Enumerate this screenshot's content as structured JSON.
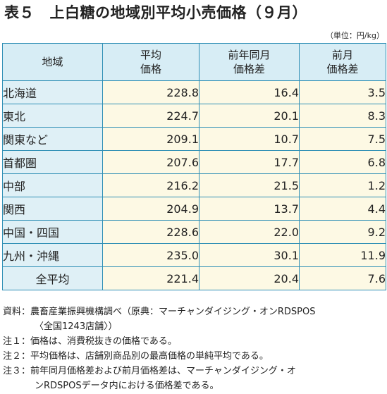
{
  "title": "表５　上白糖の地域別平均小売価格（９月）",
  "unit": "（単位：円/kg）",
  "table": {
    "headers": [
      "地域",
      "平均\n価格",
      "前年同月\n価格差",
      "前月\n価格差"
    ],
    "rows": [
      {
        "region": "北海道",
        "avg": "228.8",
        "yoy": "16.4",
        "mom": "3.5"
      },
      {
        "region": "東北",
        "avg": "224.7",
        "yoy": "20.1",
        "mom": "8.3"
      },
      {
        "region": "関東など",
        "avg": "209.1",
        "yoy": "10.7",
        "mom": "7.5"
      },
      {
        "region": "首都圏",
        "avg": "207.6",
        "yoy": "17.7",
        "mom": "6.8"
      },
      {
        "region": "中部",
        "avg": "216.2",
        "yoy": "21.5",
        "mom": "1.2"
      },
      {
        "region": "関西",
        "avg": "204.9",
        "yoy": "13.7",
        "mom": "4.4"
      },
      {
        "region": "中国・四国",
        "avg": "228.6",
        "yoy": "22.0",
        "mom": "9.2"
      },
      {
        "region": "九州・沖縄",
        "avg": "235.0",
        "yoy": "30.1",
        "mom": "11.9"
      }
    ],
    "total": {
      "region": "全平均",
      "avg": "221.4",
      "yoy": "20.4",
      "mom": "7.6"
    }
  },
  "notes": [
    {
      "text": "資料：農畜産業振興機構調べ（原典：マーチャンダイジング・オンRDSPOS",
      "indent": false
    },
    {
      "text": "〈全国1243店舗〉）",
      "indent": true
    },
    {
      "text": "注１：価格は、消費税抜きの価格である。",
      "indent": false
    },
    {
      "text": "注２：平均価格は、店舗別商品別の最高価格の単純平均である。",
      "indent": false
    },
    {
      "text": "注３：前年同月価格差および前月価格差は、マーチャンダイジング・オ",
      "indent": false
    },
    {
      "text": "ンRDSPOSデータ内における価格差である。",
      "indent": true
    }
  ]
}
